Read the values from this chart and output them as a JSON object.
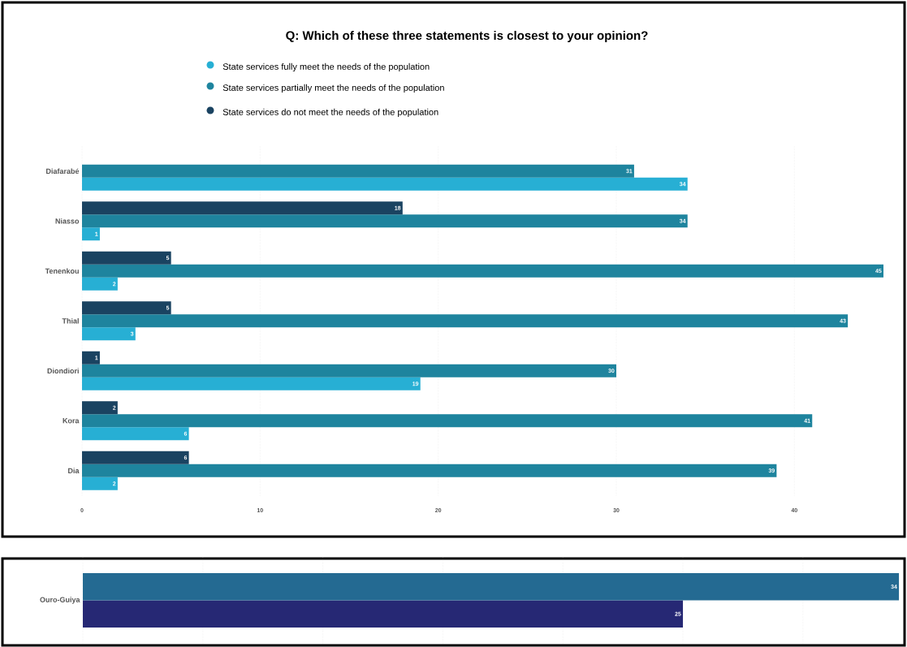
{
  "chart_data": [
    {
      "type": "bar",
      "orientation": "horizontal",
      "title": "Q: Which of these three statements is closest to your opinion?",
      "categories": [
        "Diafarabé",
        "Niasso",
        "Tenenkou",
        "Thial",
        "Diondiori",
        "Kora",
        "Dia"
      ],
      "series": [
        {
          "name": "State services fully meet the needs of the population",
          "color": "#27afd4",
          "values": [
            34,
            1,
            2,
            3,
            19,
            6,
            2
          ]
        },
        {
          "name": "State services partially meet the needs of the population",
          "color": "#1e849e",
          "values": [
            31,
            34,
            45,
            43,
            30,
            41,
            39
          ]
        },
        {
          "name": "State services do not meet the needs of the population",
          "color": "#1a4361",
          "values": [
            null,
            18,
            5,
            5,
            1,
            2,
            6
          ]
        }
      ],
      "xlim": [
        0,
        45
      ],
      "xticks": [
        0,
        10,
        20,
        30,
        40
      ],
      "grid": "x",
      "legend": "top",
      "data_labels": true
    },
    {
      "type": "bar",
      "orientation": "horizontal",
      "categories": [
        "Ouro-Guiya"
      ],
      "series": [
        {
          "color": "#262874",
          "values": [
            25
          ]
        },
        {
          "color": "#246a92",
          "values": [
            34
          ]
        }
      ],
      "xlim": [
        0,
        34.1
      ],
      "xticks": [
        {
          "value": 0,
          "label": null
        },
        {
          "value": 5,
          "label": null
        },
        {
          "value": 10,
          "label": null
        },
        {
          "value": 15,
          "label": null
        },
        {
          "value": 20,
          "label": null
        },
        {
          "value": 25,
          "label": null
        },
        {
          "value": 30,
          "label": null
        }
      ],
      "grid": "x",
      "tick_labels": "y",
      "data_labels": true
    }
  ]
}
